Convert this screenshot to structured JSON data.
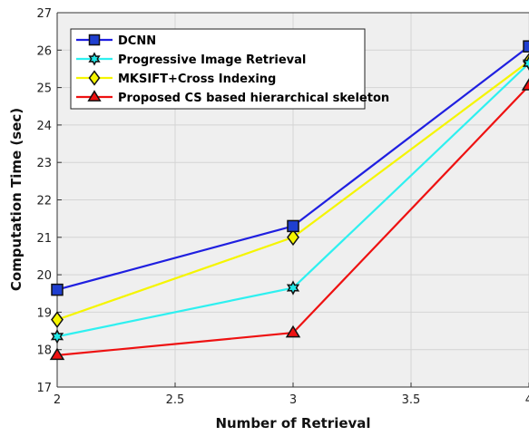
{
  "chart_data": {
    "type": "line",
    "xlabel": "Number of Retrieval",
    "ylabel": "Computation Time (sec)",
    "xlim": [
      2,
      4
    ],
    "ylim": [
      17,
      27
    ],
    "x_ticks": [
      "2",
      "2.5",
      "3",
      "3.5",
      "4"
    ],
    "y_ticks": [
      "17",
      "18",
      "19",
      "20",
      "21",
      "22",
      "23",
      "24",
      "25",
      "26",
      "27"
    ],
    "grid": true,
    "legend_position": "top-left",
    "x": [
      2,
      3,
      4
    ],
    "series": [
      {
        "name": "DCNN",
        "values": [
          19.6,
          21.3,
          26.1
        ],
        "color": "#1f1fe0",
        "marker_fill": "#1f3fd0",
        "marker": "square"
      },
      {
        "name": "Progressive Image Retrieval",
        "values": [
          18.35,
          19.65,
          25.65
        ],
        "color": "#2ef0f0",
        "marker_fill": "#20e8e8",
        "marker": "hexagram"
      },
      {
        "name": "MKSIFT+Cross Indexing",
        "values": [
          18.8,
          21.0,
          25.7
        ],
        "color": "#f5f500",
        "marker_fill": "#f5f500",
        "marker": "diamond"
      },
      {
        "name": "Proposed CS based hierarchical skeleton",
        "values": [
          17.85,
          18.45,
          25.05
        ],
        "color": "#ee1111",
        "marker_fill": "#ee1111",
        "marker": "triangle"
      }
    ]
  }
}
